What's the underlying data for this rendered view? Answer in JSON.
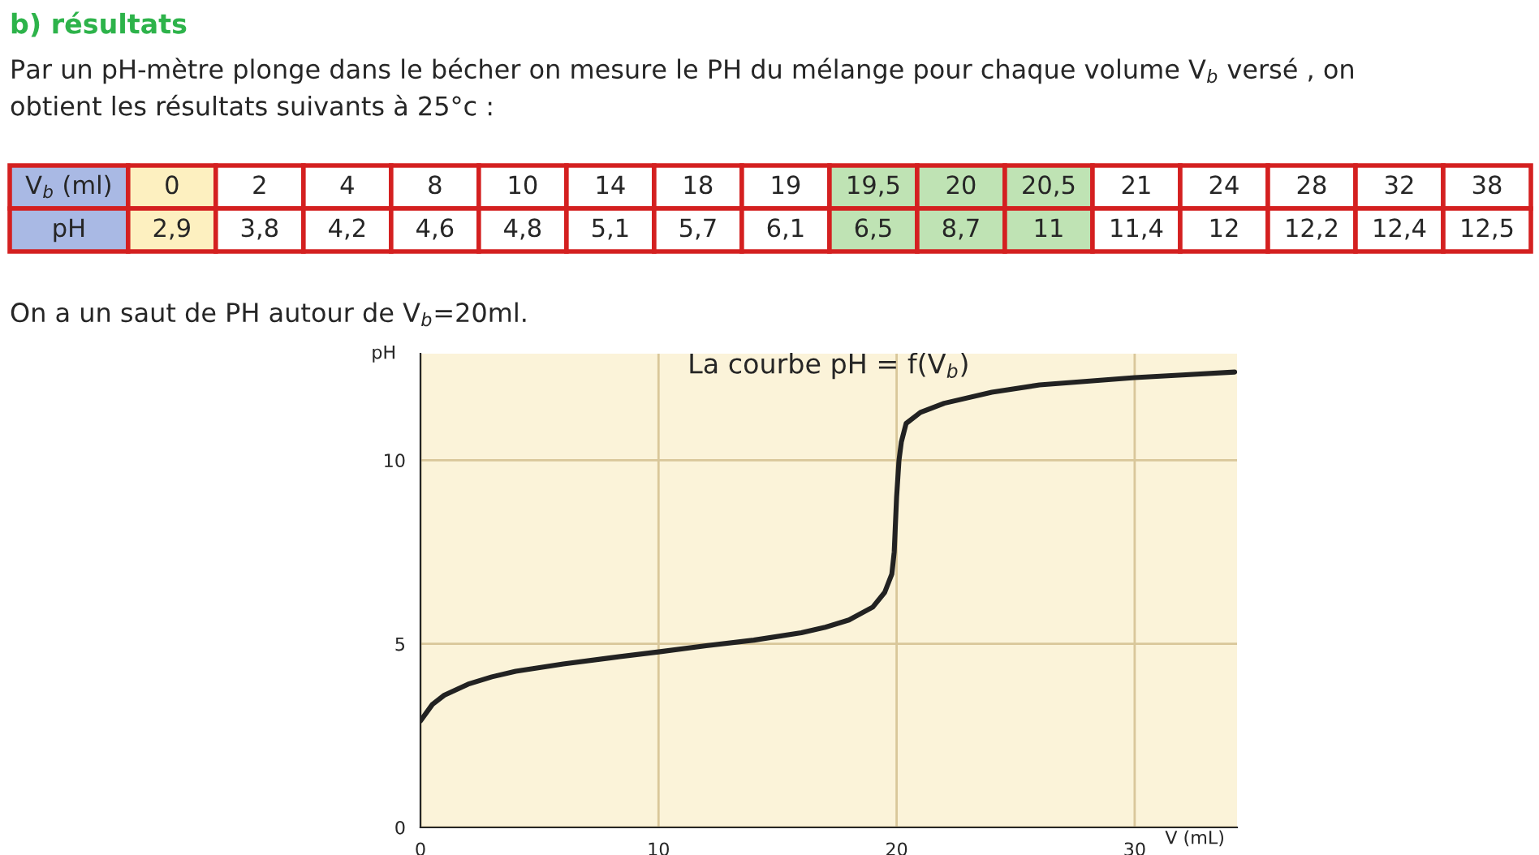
{
  "chart_data": [
    {
      "type": "other",
      "title": "b) résultats",
      "subtitle": "Par un pH-mètre plonge dans le bécher on mesure le PH du mélange pour chaque volume V$_{b}$ versé , on\nobtient les résultats suivants à 25°c :",
      "xlabel": "V$_{b}$ (ml)",
      "ylabel": "pH",
      "categories": [
        "0",
        "2",
        "4",
        "8",
        "10",
        "14",
        "18",
        "19",
        "19,5",
        "20",
        "20,5",
        "21",
        "24",
        "28",
        "32",
        "38"
      ],
      "value_labels": [
        "2,9",
        "3,8",
        "4,2",
        "4,6",
        "4,8",
        "5,1",
        "5,7",
        "6,1",
        "6,5",
        "8,7",
        "11",
        "11,4",
        "12",
        "12,2",
        "12,4",
        "12,5"
      ],
      "colors": [
        "#fdf0c0",
        "#ffffff",
        "#ffffff",
        "#ffffff",
        "#ffffff",
        "#ffffff",
        "#ffffff",
        "#ffffff",
        "#bfe3b4",
        "#bfe3b4",
        "#bfe3b4",
        "#ffffff",
        "#ffffff",
        "#ffffff",
        "#ffffff",
        "#ffffff"
      ],
      "annotations": [
        "On a un saut de PH autour de V$_{b}$=20ml."
      ]
    },
    {
      "type": "line",
      "title": "La courbe pH = f(V$_{b}$)",
      "xlabel": "V (mL)",
      "ylabel": "pH",
      "x": [
        0,
        0.5,
        1,
        2,
        3,
        4,
        6,
        8,
        10,
        12,
        14,
        16,
        17,
        18,
        19,
        19.5,
        19.8,
        19.9,
        20.0,
        20.1,
        20.2,
        20.4,
        21,
        22,
        24,
        26,
        28,
        30,
        32,
        34.2
      ],
      "series": [
        {
          "color": "#222222",
          "values": [
            2.9,
            3.35,
            3.6,
            3.9,
            4.1,
            4.25,
            4.45,
            4.62,
            4.78,
            4.95,
            5.1,
            5.3,
            5.45,
            5.65,
            6.0,
            6.4,
            6.9,
            7.5,
            9.0,
            10.0,
            10.5,
            11.0,
            11.3,
            11.55,
            11.85,
            12.05,
            12.15,
            12.25,
            12.32,
            12.4
          ]
        }
      ],
      "xlim": [
        0,
        34.3
      ],
      "ylim": [
        0,
        12.9
      ],
      "xticks": [
        0,
        10,
        20,
        30
      ],
      "yticks": [
        0,
        5,
        10
      ],
      "grid": true
    }
  ]
}
